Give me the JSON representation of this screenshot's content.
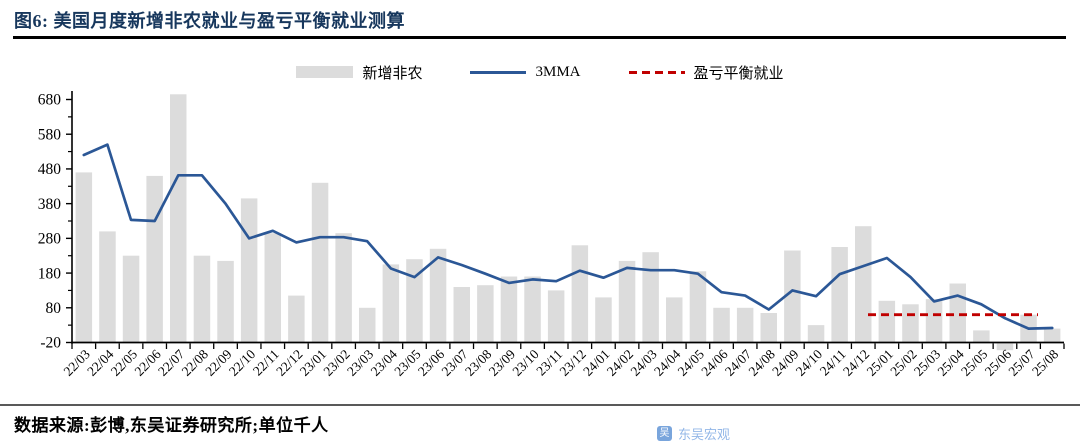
{
  "title": "图6: 美国月度新增非农就业与盈亏平衡就业测算",
  "footer": {
    "source_note": "数据来源:彭博,东吴证券研究所;单位千人",
    "watermark": "东吴宏观"
  },
  "legend": [
    {
      "label": "新增非农",
      "type": "bar",
      "color": "#dcdcdc"
    },
    {
      "label": "3MMA",
      "type": "line",
      "color": "#2b5796"
    },
    {
      "label": "盈亏平衡就业",
      "type": "dashed-line",
      "color": "#c00000"
    }
  ],
  "chart_data": {
    "type": "bar",
    "title": "美国月度新增非农就业与盈亏平衡就业测算",
    "unit": "千人",
    "categories": [
      "22/03",
      "22/04",
      "22/05",
      "22/06",
      "22/07",
      "22/08",
      "22/09",
      "22/10",
      "22/11",
      "22/12",
      "23/01",
      "23/02",
      "23/03",
      "23/04",
      "23/05",
      "23/06",
      "23/07",
      "23/08",
      "23/09",
      "23/10",
      "23/11",
      "23/12",
      "24/01",
      "24/02",
      "24/03",
      "24/04",
      "24/05",
      "24/06",
      "24/07",
      "24/08",
      "24/09",
      "24/10",
      "24/11",
      "24/12",
      "25/01",
      "25/02",
      "25/03",
      "25/04",
      "25/05",
      "25/06",
      "25/07",
      "25/08"
    ],
    "series": [
      {
        "name": "新增非农",
        "type": "bar",
        "color": "#dcdcdc",
        "values": [
          470,
          300,
          230,
          460,
          695,
          230,
          215,
          395,
          295,
          115,
          440,
          295,
          80,
          205,
          220,
          250,
          140,
          145,
          170,
          170,
          130,
          260,
          110,
          215,
          240,
          110,
          185,
          80,
          80,
          65,
          245,
          30,
          255,
          315,
          100,
          90,
          105,
          150,
          15,
          -15,
          60,
          20
        ]
      },
      {
        "name": "3MMA",
        "type": "line",
        "color": "#2b5796",
        "values": [
          520,
          550,
          333.3,
          330,
          461.7,
          461.7,
          380,
          280,
          301.7,
          268.3,
          283.3,
          283.3,
          271.7,
          193.3,
          168.3,
          225,
          203.3,
          178.3,
          151.7,
          161.7,
          156.7,
          186.7,
          166.7,
          195,
          188.3,
          188.3,
          178.3,
          125,
          115,
          75,
          130,
          113.3,
          176.7,
          200,
          223.3,
          168.3,
          98.3,
          115,
          90,
          50,
          20,
          21.7
        ]
      },
      {
        "name": "盈亏平衡就业",
        "type": "dashed-line",
        "color": "#c00000",
        "value": 60,
        "from_month": "25/01",
        "to_month": "25/08"
      }
    ],
    "ylim": [
      -20,
      680
    ],
    "yticks": [
      -20,
      80,
      180,
      280,
      380,
      480,
      580,
      680
    ],
    "y_minor_step": 50,
    "grid": false,
    "legend_position": "top-center"
  }
}
